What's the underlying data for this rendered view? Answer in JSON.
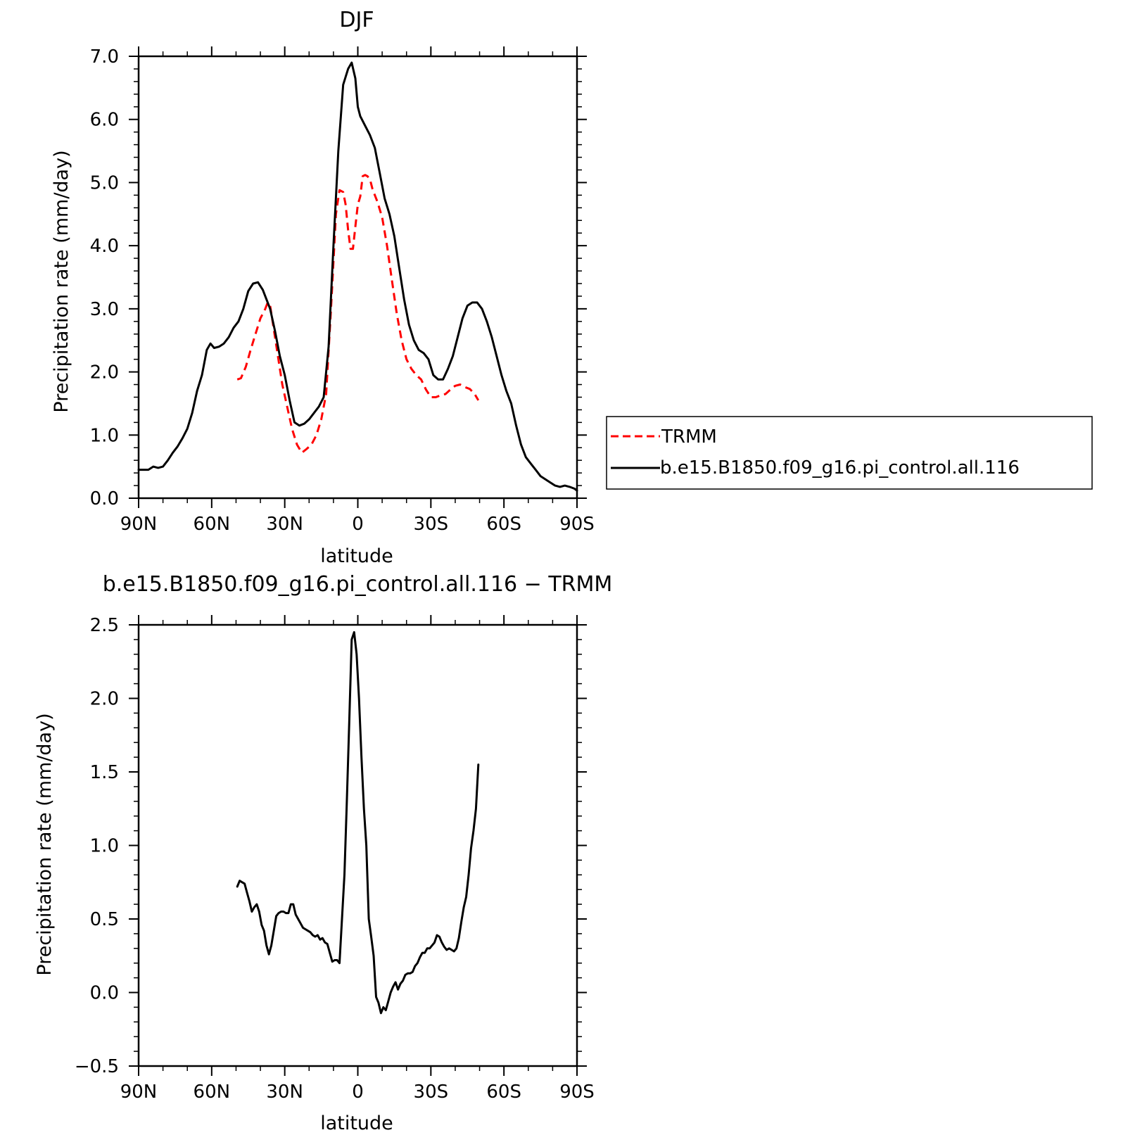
{
  "chart_data": [
    {
      "type": "line",
      "title": "DJF",
      "xlabel": "latitude",
      "ylabel": "Precipitation rate (mm/day)",
      "xlim": [
        90,
        -90
      ],
      "ylim": [
        0,
        7
      ],
      "xticks": [
        {
          "value": 90,
          "label": "90N"
        },
        {
          "value": 60,
          "label": "60N"
        },
        {
          "value": 30,
          "label": "30N"
        },
        {
          "value": 0,
          "label": "0"
        },
        {
          "value": -30,
          "label": "30S"
        },
        {
          "value": -60,
          "label": "60S"
        },
        {
          "value": -90,
          "label": "90S"
        }
      ],
      "yticks": [
        {
          "value": 0,
          "label": "0.0"
        },
        {
          "value": 1,
          "label": "1.0"
        },
        {
          "value": 2,
          "label": "2.0"
        },
        {
          "value": 3,
          "label": "3.0"
        },
        {
          "value": 4,
          "label": "4.0"
        },
        {
          "value": 5,
          "label": "5.0"
        },
        {
          "value": 6,
          "label": "6.0"
        },
        {
          "value": 7,
          "label": "7.0"
        }
      ],
      "legend_position": "right",
      "series": [
        {
          "name": "TRMM",
          "color": "#ff0000",
          "style": "dashed",
          "x": [
            49.5,
            48,
            46,
            44,
            42,
            40,
            38,
            37,
            36,
            35,
            33,
            31,
            29,
            27,
            25,
            23,
            21,
            19,
            17,
            15,
            13,
            11,
            9,
            7.5,
            6,
            5,
            4,
            3,
            2,
            1,
            0,
            -1,
            -2,
            -3,
            -4,
            -5,
            -6,
            -7,
            -8,
            -10,
            -12,
            -14,
            -16,
            -18,
            -20,
            -22,
            -24,
            -26,
            -28,
            -30,
            -32,
            -34,
            -36,
            -38,
            -40,
            -42,
            -44,
            -46,
            -48,
            -49.5
          ],
          "values": [
            1.88,
            1.9,
            2.08,
            2.35,
            2.6,
            2.85,
            3.0,
            3.1,
            3.05,
            2.8,
            2.3,
            1.8,
            1.45,
            1.1,
            0.85,
            0.72,
            0.78,
            0.85,
            1.0,
            1.25,
            1.65,
            3.0,
            4.5,
            4.88,
            4.85,
            4.65,
            4.25,
            3.95,
            3.95,
            4.3,
            4.65,
            4.78,
            5.1,
            5.12,
            5.1,
            5.05,
            4.9,
            4.8,
            4.7,
            4.45,
            4.0,
            3.45,
            2.92,
            2.5,
            2.2,
            2.05,
            1.95,
            1.88,
            1.72,
            1.6,
            1.6,
            1.63,
            1.65,
            1.72,
            1.78,
            1.8,
            1.76,
            1.73,
            1.65,
            1.55
          ]
        },
        {
          "name": "b.e15.B1850.f09_g16.pi_control.all.116",
          "color": "#000000",
          "style": "solid",
          "x": [
            90,
            88,
            86,
            84,
            82,
            80,
            78,
            76,
            74,
            72,
            70,
            68,
            66,
            64,
            62,
            60.5,
            59,
            57,
            55,
            53,
            51,
            49,
            47,
            45,
            43,
            41,
            39,
            37.5,
            36,
            34,
            32,
            30,
            28,
            26,
            24,
            22,
            20,
            18,
            16,
            14,
            12,
            10,
            8,
            6,
            4,
            2.5,
            1,
            0,
            -1,
            -3,
            -5,
            -7,
            -9,
            -11,
            -13,
            -15,
            -17,
            -19,
            -21,
            -23,
            -25,
            -27,
            -29,
            -31,
            -33,
            -35,
            -37,
            -39,
            -41,
            -43,
            -45,
            -47,
            -49,
            -51,
            -53,
            -55,
            -57,
            -59,
            -61,
            -63,
            -65,
            -67,
            -69,
            -71,
            -73,
            -75,
            -77,
            -79,
            -81,
            -83,
            -85,
            -87,
            -89,
            -90
          ],
          "values": [
            0.45,
            0.45,
            0.45,
            0.5,
            0.48,
            0.5,
            0.6,
            0.72,
            0.82,
            0.95,
            1.1,
            1.35,
            1.7,
            1.95,
            2.35,
            2.45,
            2.38,
            2.4,
            2.45,
            2.55,
            2.7,
            2.8,
            3.0,
            3.28,
            3.4,
            3.42,
            3.3,
            3.15,
            3.0,
            2.65,
            2.25,
            1.95,
            1.55,
            1.2,
            1.15,
            1.18,
            1.25,
            1.35,
            1.45,
            1.6,
            2.4,
            4.0,
            5.5,
            6.55,
            6.8,
            6.9,
            6.65,
            6.2,
            6.05,
            5.9,
            5.75,
            5.55,
            5.15,
            4.75,
            4.5,
            4.15,
            3.65,
            3.15,
            2.75,
            2.5,
            2.35,
            2.3,
            2.2,
            1.95,
            1.88,
            1.88,
            2.05,
            2.25,
            2.55,
            2.85,
            3.05,
            3.1,
            3.1,
            3.0,
            2.8,
            2.55,
            2.25,
            1.95,
            1.7,
            1.5,
            1.15,
            0.85,
            0.65,
            0.55,
            0.45,
            0.35,
            0.3,
            0.25,
            0.2,
            0.18,
            0.2,
            0.18,
            0.15,
            0.12
          ]
        }
      ]
    },
    {
      "type": "line",
      "title": "b.e15.B1850.f09_g16.pi_control.all.116 − TRMM",
      "xlabel": "latitude",
      "ylabel": "Precipitation rate (mm/day)",
      "xlim": [
        90,
        -90
      ],
      "ylim": [
        -0.5,
        2.5
      ],
      "xticks": [
        {
          "value": 90,
          "label": "90N"
        },
        {
          "value": 60,
          "label": "60N"
        },
        {
          "value": 30,
          "label": "30N"
        },
        {
          "value": 0,
          "label": "0"
        },
        {
          "value": -30,
          "label": "30S"
        },
        {
          "value": -60,
          "label": "60S"
        },
        {
          "value": -90,
          "label": "90S"
        }
      ],
      "yticks": [
        {
          "value": -0.5,
          "label": "−0.5"
        },
        {
          "value": 0,
          "label": "0.0"
        },
        {
          "value": 0.5,
          "label": "0.5"
        },
        {
          "value": 1,
          "label": "1.0"
        },
        {
          "value": 1.5,
          "label": "1.5"
        },
        {
          "value": 2,
          "label": "2.0"
        },
        {
          "value": 2.5,
          "label": "2.5"
        }
      ],
      "series": [
        {
          "color": "#000000",
          "style": "solid",
          "x": [
            49.5,
            48.5,
            47.5,
            46.5,
            45.5,
            44.5,
            43.5,
            42.5,
            41.5,
            40.5,
            39.5,
            38.5,
            37.5,
            36.5,
            35.5,
            34.5,
            33.5,
            32.5,
            31.5,
            30.5,
            29.5,
            28.5,
            27.5,
            26.5,
            25.5,
            24.5,
            23.5,
            22.5,
            21.5,
            20.5,
            19.5,
            18.5,
            17.5,
            16.5,
            15.5,
            14.5,
            13.5,
            12.5,
            11.5,
            10.5,
            9.5,
            8.5,
            7.5,
            6.5,
            5.5,
            4.5,
            3.5,
            2.5,
            1.5,
            0.5,
            -0.5,
            -1.5,
            -2.5,
            -3.5,
            -4.5,
            -5.5,
            -6.5,
            -7.5,
            -8.5,
            -9.5,
            -10.5,
            -11.5,
            -12.5,
            -13.5,
            -14.5,
            -15.5,
            -16.5,
            -17.5,
            -18.5,
            -19.5,
            -20.5,
            -21.5,
            -22.5,
            -23.5,
            -24.5,
            -25.5,
            -26.5,
            -27.5,
            -28.5,
            -29.5,
            -30.5,
            -31.5,
            -32.5,
            -33.5,
            -34.5,
            -35.5,
            -36.5,
            -37.5,
            -38.5,
            -39.5,
            -40.5,
            -41.5,
            -42.5,
            -43.5,
            -44.5,
            -45.5,
            -46.5,
            -47.5,
            -48.5,
            -49.5
          ],
          "values": [
            0.72,
            0.76,
            0.75,
            0.74,
            0.68,
            0.62,
            0.55,
            0.58,
            0.6,
            0.55,
            0.46,
            0.42,
            0.32,
            0.26,
            0.32,
            0.42,
            0.52,
            0.54,
            0.55,
            0.55,
            0.54,
            0.54,
            0.6,
            0.6,
            0.53,
            0.5,
            0.47,
            0.44,
            0.43,
            0.42,
            0.41,
            0.39,
            0.38,
            0.39,
            0.36,
            0.37,
            0.34,
            0.33,
            0.27,
            0.21,
            0.22,
            0.22,
            0.2,
            0.5,
            0.8,
            1.3,
            1.85,
            2.4,
            2.45,
            2.3,
            2.0,
            1.6,
            1.25,
            1.0,
            0.5,
            0.38,
            0.25,
            -0.03,
            -0.07,
            -0.14,
            -0.1,
            -0.12,
            -0.06,
            0.0,
            0.04,
            0.07,
            0.02,
            0.06,
            0.08,
            0.12,
            0.13,
            0.13,
            0.14,
            0.18,
            0.2,
            0.24,
            0.27,
            0.27,
            0.3,
            0.3,
            0.32,
            0.34,
            0.39,
            0.38,
            0.34,
            0.31,
            0.29,
            0.3,
            0.29,
            0.28,
            0.3,
            0.37,
            0.48,
            0.58,
            0.65,
            0.8,
            0.98,
            1.1,
            1.25,
            1.55
          ]
        }
      ]
    }
  ]
}
